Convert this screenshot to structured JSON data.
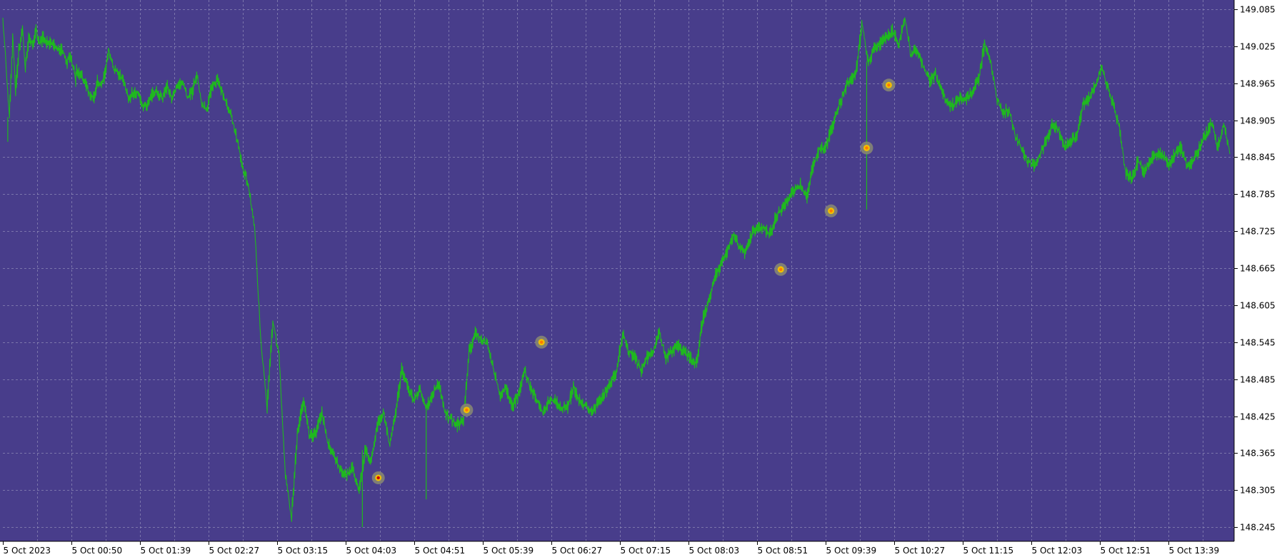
{
  "chart_data": {
    "type": "line",
    "instrument_style": "forex-tick-chart",
    "colors": {
      "plot_background": "#483d8b",
      "line": "#1fb81f",
      "axis_background": "#ffffff",
      "grid": "#a6a3c6",
      "marker_outer": "#8a8a72",
      "marker_inner": "#f0c000",
      "marker_center_red": "#d00000",
      "marker_center_orange": "#ff7a00"
    },
    "grid": true,
    "ylim": [
      148.222,
      149.1
    ],
    "y_ticks": [
      "149.085",
      "149.025",
      "148.965",
      "148.905",
      "148.845",
      "148.785",
      "148.725",
      "148.665",
      "148.605",
      "148.545",
      "148.485",
      "148.425",
      "148.365",
      "148.305",
      "148.245"
    ],
    "x_ticks": [
      "5 Oct 2023",
      "5 Oct 00:50",
      "5 Oct 01:39",
      "5 Oct 02:27",
      "5 Oct 03:15",
      "5 Oct 04:03",
      "5 Oct 04:51",
      "5 Oct 05:39",
      "5 Oct 06:27",
      "5 Oct 07:15",
      "5 Oct 08:03",
      "5 Oct 08:51",
      "5 Oct 09:39",
      "5 Oct 10:27",
      "5 Oct 11:15",
      "5 Oct 12:03",
      "5 Oct 12:51",
      "5 Oct 13:39"
    ],
    "series": [
      {
        "x": [
          0,
          0.2,
          0.5,
          0.8,
          1.0,
          1.3,
          1.6,
          1.8,
          2.1,
          2.4,
          2.7,
          3.0,
          3.3,
          3.6,
          4.0,
          4.4,
          4.8,
          5.0,
          5.2,
          5.4,
          5.6,
          5.8,
          5.9,
          6.0,
          6.1,
          6.3,
          6.6,
          7.0,
          7.4,
          7.7,
          8.0,
          8.3,
          8.6,
          9.0,
          9.4,
          9.8,
          10.2,
          10.6,
          11.0,
          11.4,
          11.8,
          12.2,
          12.6,
          13.0,
          13.4,
          13.8,
          14.2,
          14.6,
          15.0,
          15.4,
          15.8,
          16.2,
          16.6,
          17.0,
          17.5,
          18.0,
          18.5,
          19.0,
          19.5,
          20.0,
          20.5,
          21.0,
          21.5,
          22.0,
          22.5,
          23.0,
          23.5,
          24.0,
          24.5,
          25.0,
          25.5,
          26.0,
          26.5,
          27.0,
          27.5,
          28.0,
          28.5,
          29.0,
          29.5,
          30.0,
          30.5,
          31.0,
          31.5,
          32.0,
          32.5,
          33.0,
          33.5,
          34.0,
          34.5,
          35.0,
          35.5,
          36.0,
          36.5,
          37.0,
          37.5,
          38.0,
          38.5,
          39.0,
          39.5,
          40.0,
          40.5,
          41.0,
          41.5,
          42.0,
          42.5,
          43.0,
          43.5,
          44.0,
          44.5,
          45.0,
          45.5,
          46.0,
          46.5,
          47.0,
          47.5,
          48.0,
          48.5,
          49.0,
          49.5,
          50.0,
          50.5,
          51.0,
          51.5,
          52.0,
          52.5,
          53.0,
          53.5,
          54.0,
          54.5,
          55.0,
          55.5,
          56.0,
          56.5,
          57.0,
          57.5,
          58.0,
          58.5,
          59.0,
          59.5,
          60.0,
          60.5,
          61.0,
          61.5,
          62.0,
          62.5,
          63.0,
          63.5,
          64.0,
          64.5,
          65.0,
          65.5,
          66.0,
          66.5,
          67.0,
          67.5,
          68.0,
          68.5,
          69.0,
          69.5,
          70.0,
          70.5,
          71.0,
          71.5,
          72.0,
          72.5,
          73.0,
          73.5,
          74.0,
          74.5,
          75.0,
          75.5,
          76.0,
          76.5,
          77.0,
          77.5,
          78.0,
          78.5,
          79.0,
          79.5,
          80.0,
          80.5,
          81.0,
          81.5,
          82.0,
          82.5,
          83.0,
          83.5,
          84.0,
          84.5,
          85.0,
          85.5,
          86.0,
          86.5,
          87.0,
          87.5,
          88.0,
          88.5,
          89.0,
          89.5,
          90.0,
          90.5,
          91.0,
          91.5,
          92.0,
          92.5,
          93.0,
          93.5,
          94.0,
          94.5,
          95.0,
          95.5,
          96.0,
          96.5,
          97.0,
          97.5,
          98.0,
          98.5,
          99.0,
          99.5,
          100.0
        ],
        "values": [
          149.06,
          149.01,
          148.91,
          149.04,
          148.95,
          149.02,
          149.05,
          148.99,
          149.04,
          149.03,
          149.05,
          149.03,
          149.04,
          149.03,
          149.03,
          149.02,
          149.02,
          149.01,
          149.0,
          149.01,
          149.0,
          148.99,
          148.97,
          148.99,
          148.98,
          148.98,
          148.97,
          148.95,
          148.94,
          148.97,
          148.96,
          148.98,
          149.02,
          148.99,
          148.98,
          148.97,
          148.94,
          148.95,
          148.95,
          148.93,
          148.93,
          148.95,
          148.95,
          148.94,
          148.96,
          148.94,
          148.96,
          148.97,
          148.94,
          148.95,
          148.98,
          148.93,
          148.92,
          148.96,
          148.97,
          148.94,
          148.92,
          148.88,
          148.83,
          148.8,
          148.73,
          148.55,
          148.44,
          148.58,
          148.52,
          148.33,
          148.26,
          148.4,
          148.45,
          148.39,
          148.4,
          148.43,
          148.38,
          148.36,
          148.34,
          148.33,
          148.34,
          148.3,
          148.37,
          148.35,
          148.41,
          148.43,
          148.38,
          148.43,
          148.5,
          148.47,
          148.45,
          148.47,
          148.44,
          148.46,
          148.48,
          148.43,
          148.42,
          148.41,
          148.42,
          148.53,
          148.56,
          148.55,
          148.54,
          148.5,
          148.46,
          148.47,
          148.44,
          148.46,
          148.5,
          148.47,
          148.45,
          148.43,
          148.45,
          148.45,
          148.44,
          148.44,
          148.47,
          148.45,
          148.44,
          148.43,
          148.45,
          148.46,
          148.48,
          148.5,
          148.56,
          148.53,
          148.52,
          148.5,
          148.52,
          148.53,
          148.56,
          148.52,
          148.53,
          148.54,
          148.53,
          148.52,
          148.51,
          148.58,
          148.61,
          148.65,
          148.67,
          148.69,
          148.72,
          148.7,
          148.69,
          148.72,
          148.73,
          148.73,
          148.72,
          148.75,
          148.76,
          148.78,
          148.79,
          148.8,
          148.78,
          148.83,
          148.86,
          148.86,
          148.89,
          148.92,
          148.95,
          148.97,
          148.98,
          149.06,
          149.0,
          149.02,
          149.03,
          149.04,
          149.05,
          149.03,
          149.07,
          149.01,
          149.02,
          148.99,
          148.97,
          148.98,
          148.95,
          148.93,
          148.93,
          148.94,
          148.94,
          148.95,
          148.97,
          149.03,
          149.0,
          148.94,
          148.92,
          148.92,
          148.88,
          148.86,
          148.84,
          148.83,
          148.85,
          148.87,
          148.9,
          148.89,
          148.86,
          148.87,
          148.88,
          148.93,
          148.94,
          148.96,
          148.99,
          148.96,
          148.93,
          148.89,
          148.82,
          148.81,
          148.84,
          148.82,
          148.84,
          148.85,
          148.85,
          148.83,
          148.85,
          148.86,
          148.83,
          148.84,
          148.86,
          148.88,
          148.9,
          148.86,
          148.9,
          148.85
        ],
        "min_spikes": [
          {
            "x": 0.4,
            "low": 148.87
          },
          {
            "x": 29.3,
            "low": 148.245
          },
          {
            "x": 34.5,
            "low": 148.29
          },
          {
            "x": 70.4,
            "low": 148.76
          }
        ]
      }
    ],
    "markers": [
      {
        "x": 30.6,
        "y": 148.325,
        "center": "red"
      },
      {
        "x": 37.8,
        "y": 148.435,
        "center": "orange"
      },
      {
        "x": 43.9,
        "y": 148.545,
        "center": "orange"
      },
      {
        "x": 63.4,
        "y": 148.663,
        "center": "orange"
      },
      {
        "x": 67.5,
        "y": 148.758,
        "center": "orange"
      },
      {
        "x": 70.4,
        "y": 148.86,
        "center": "orange"
      },
      {
        "x": 72.2,
        "y": 148.962,
        "center": "orange"
      }
    ]
  }
}
